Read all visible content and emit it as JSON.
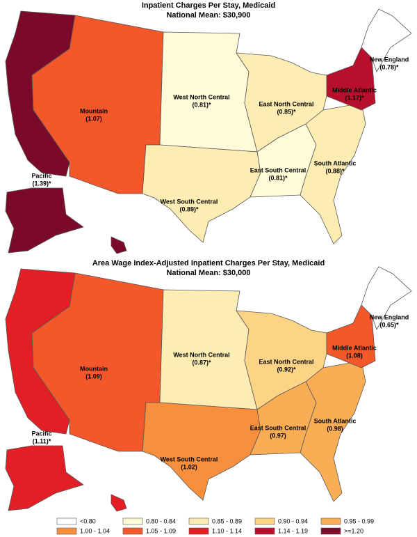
{
  "maps": [
    {
      "title": "Inpatient Charges Per Stay, Medicaid",
      "subtitle": "National Mean: $30,900",
      "regions": [
        {
          "name": "Pacific",
          "value": 1.39,
          "value_label": "(1.39)*",
          "color": "#7b0a2a"
        },
        {
          "name": "Mountain",
          "value": 1.07,
          "value_label": "(1.07)",
          "color": "#f4582a"
        },
        {
          "name": "West North Central",
          "value": 0.81,
          "value_label": "(0.81)*",
          "color": "#fffbd8"
        },
        {
          "name": "West South Central",
          "value": 0.89,
          "value_label": "(0.89)*",
          "color": "#fdedb3"
        },
        {
          "name": "East North Central",
          "value": 0.85,
          "value_label": "(0.85)*",
          "color": "#fdedb3"
        },
        {
          "name": "East South Central",
          "value": 0.81,
          "value_label": "(0.81)*",
          "color": "#fffbd8"
        },
        {
          "name": "South Atlantic",
          "value": 0.88,
          "value_label": "(0.88)*",
          "color": "#fdedb3"
        },
        {
          "name": "Middle Atlantic",
          "value": 1.17,
          "value_label": "(1.17)*",
          "color": "#b8102c"
        },
        {
          "name": "New England",
          "value": 0.78,
          "value_label": "(0.78)*",
          "color": "#ffffff"
        }
      ]
    },
    {
      "title": "Area Wage Index-Adjusted Inpatient Charges Per Stay, Medicaid",
      "subtitle": "National Mean: $30,000",
      "regions": [
        {
          "name": "Pacific",
          "value": 1.11,
          "value_label": "(1.11)*",
          "color": "#e31f26"
        },
        {
          "name": "Mountain",
          "value": 1.09,
          "value_label": "(1.09)",
          "color": "#f4582a"
        },
        {
          "name": "West North Central",
          "value": 0.87,
          "value_label": "(0.87)*",
          "color": "#fdedb3"
        },
        {
          "name": "West South Central",
          "value": 1.02,
          "value_label": "(1.02)",
          "color": "#f88f3c"
        },
        {
          "name": "East North Central",
          "value": 0.92,
          "value_label": "(0.92)*",
          "color": "#fdd486"
        },
        {
          "name": "East South Central",
          "value": 0.97,
          "value_label": "(0.97)",
          "color": "#f9ad55"
        },
        {
          "name": "South Atlantic",
          "value": 0.98,
          "value_label": "(0.98)",
          "color": "#f9ad55"
        },
        {
          "name": "Middle Atlantic",
          "value": 1.08,
          "value_label": "(1.08)",
          "color": "#f4582a"
        },
        {
          "name": "New England",
          "value": 0.65,
          "value_label": "(0.65)*",
          "color": "#ffffff"
        }
      ]
    }
  ],
  "legend": [
    {
      "label": "<0.80",
      "color": "#ffffff"
    },
    {
      "label": "0.80 - 0.84",
      "color": "#fffbd8"
    },
    {
      "label": "0.85 - 0.89",
      "color": "#fdedb3"
    },
    {
      "label": "0.90 - 0.94",
      "color": "#fdd486"
    },
    {
      "label": "0.95 - 0.99",
      "color": "#f9ad55"
    },
    {
      "label": "1.00 - 1.04",
      "color": "#f88f3c"
    },
    {
      "label": "1.05 - 1.09",
      "color": "#f4582a"
    },
    {
      "label": "1.10 - 1.14",
      "color": "#e31f26"
    },
    {
      "label": "1.14 - 1.19",
      "color": "#b8102c"
    },
    {
      "label": ">=1.20",
      "color": "#7b0a2a"
    }
  ]
}
